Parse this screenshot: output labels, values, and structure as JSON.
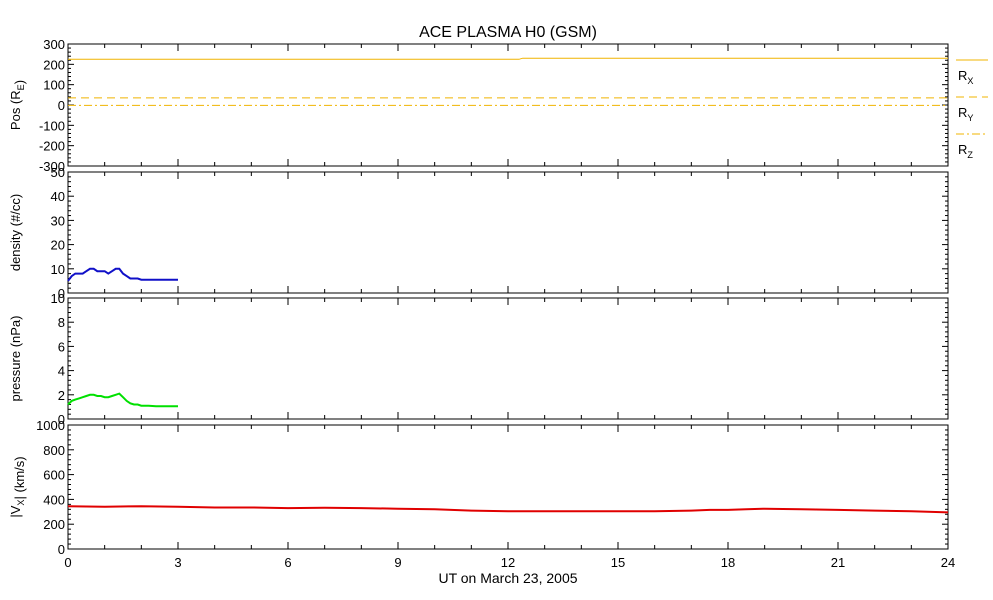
{
  "title": "ACE PLASMA H0 (GSM)",
  "xlabel": "UT on March 23, 2005",
  "x_ticks": [
    "0",
    "3",
    "6",
    "9",
    "12",
    "15",
    "18",
    "21",
    "24"
  ],
  "colors": {
    "axis": "#000000",
    "position": "#f0b400",
    "density": "#1010c8",
    "pressure": "#00e000",
    "velocity": "#e00000"
  },
  "chart_data": [
    {
      "type": "line",
      "ylabel": "Pos (R_E)",
      "ylim": [
        -300,
        300
      ],
      "y_ticks": [
        -300,
        -200,
        -100,
        0,
        100,
        200,
        300
      ],
      "legend": [
        "R_X",
        "R_Y",
        "R_Z"
      ],
      "series": [
        {
          "name": "R_X",
          "style": "solid",
          "x": [
            0,
            12.3,
            12.4,
            24
          ],
          "y": [
            225,
            225,
            230,
            230
          ]
        },
        {
          "name": "R_Y",
          "style": "dashed",
          "x": [
            0,
            24
          ],
          "y": [
            35,
            35
          ]
        },
        {
          "name": "R_Z",
          "style": "dashdot",
          "x": [
            0,
            24
          ],
          "y": [
            -2,
            -2
          ]
        }
      ]
    },
    {
      "type": "line",
      "ylabel": "density (#/cc)",
      "ylim": [
        0,
        50
      ],
      "y_ticks": [
        0,
        10,
        20,
        30,
        40,
        50
      ],
      "series": [
        {
          "x": [
            0,
            0.1,
            0.2,
            0.3,
            0.4,
            0.5,
            0.6,
            0.7,
            0.8,
            0.9,
            1.0,
            1.1,
            1.2,
            1.3,
            1.4,
            1.5,
            1.6,
            1.7,
            1.8,
            1.9,
            2.0,
            2.2,
            2.4,
            2.6,
            2.8,
            3.0
          ],
          "y": [
            5,
            7,
            8,
            8,
            8,
            9,
            10,
            10,
            9,
            9,
            9,
            8,
            9,
            10,
            10,
            8,
            7,
            6,
            6,
            6,
            5.5,
            5.5,
            5.5,
            5.5,
            5.5,
            5.5
          ]
        }
      ]
    },
    {
      "type": "line",
      "ylabel": "pressure (nPa)",
      "ylim": [
        0,
        10
      ],
      "y_ticks": [
        0,
        2,
        4,
        6,
        8,
        10
      ],
      "series": [
        {
          "x": [
            0,
            0.1,
            0.2,
            0.3,
            0.4,
            0.5,
            0.6,
            0.7,
            0.8,
            0.9,
            1.0,
            1.1,
            1.2,
            1.3,
            1.4,
            1.5,
            1.6,
            1.7,
            1.8,
            1.9,
            2.0,
            2.2,
            2.4,
            2.6,
            2.8,
            3.0
          ],
          "y": [
            1.2,
            1.5,
            1.6,
            1.7,
            1.8,
            1.9,
            2.0,
            2.0,
            1.9,
            1.9,
            1.8,
            1.8,
            1.9,
            2.0,
            2.1,
            1.8,
            1.5,
            1.3,
            1.2,
            1.2,
            1.1,
            1.1,
            1.05,
            1.05,
            1.05,
            1.05
          ]
        }
      ]
    },
    {
      "type": "line",
      "ylabel": "|V_X| (km/s)",
      "ylim": [
        0,
        1000
      ],
      "y_ticks": [
        0,
        200,
        400,
        600,
        800,
        1000
      ],
      "series": [
        {
          "x": [
            0,
            1,
            2,
            3,
            4,
            5,
            6,
            7,
            8,
            9,
            10,
            11,
            12,
            13,
            14,
            15,
            16,
            17,
            17.5,
            18,
            18.5,
            19,
            20,
            21,
            22,
            23,
            24
          ],
          "y": [
            345,
            340,
            345,
            340,
            335,
            335,
            330,
            332,
            330,
            325,
            320,
            310,
            305,
            305,
            305,
            305,
            305,
            310,
            315,
            315,
            320,
            325,
            320,
            315,
            310,
            305,
            295
          ]
        }
      ]
    }
  ]
}
